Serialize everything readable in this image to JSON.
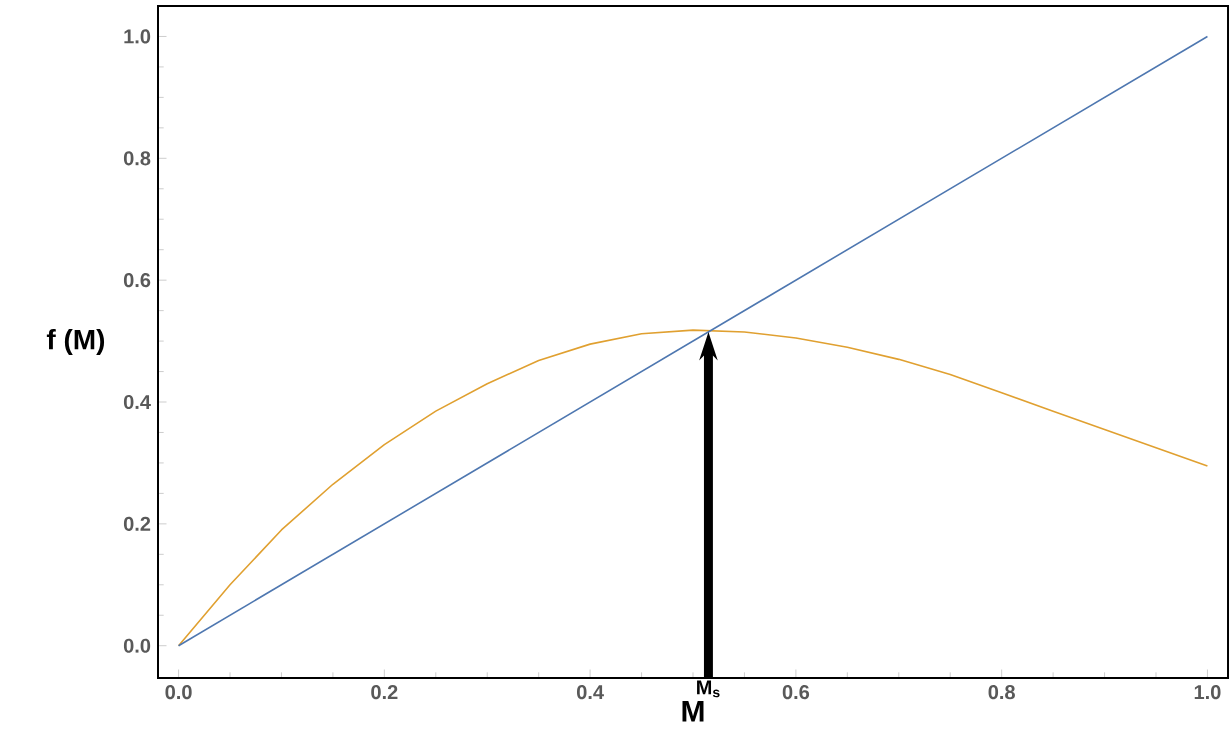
{
  "chart_data": {
    "type": "line",
    "xlabel": "M",
    "ylabel": "f (M)",
    "xlim": [
      -0.02,
      1.02
    ],
    "ylim": [
      -0.053,
      1.05
    ],
    "xticks": [
      {
        "value": 0,
        "label": "0.0"
      },
      0.2,
      0.4,
      0.6,
      0.8,
      {
        "value": 1,
        "label": "1.0"
      }
    ],
    "yticks": [
      {
        "value": 0,
        "label": "0.0"
      },
      0.2,
      0.4,
      0.6,
      0.8,
      {
        "value": 1,
        "label": "1.0"
      }
    ],
    "series": [
      {
        "color": "#e0a030",
        "x": [
          0,
          0.05,
          0.1,
          0.15,
          0.2,
          0.25,
          0.3,
          0.35,
          0.4,
          0.45,
          0.5,
          0.55,
          0.6,
          0.65,
          0.7,
          0.75,
          0.8,
          0.85,
          0.9,
          0.95,
          1.0
        ],
        "values": [
          0,
          0.1,
          0.19,
          0.265,
          0.33,
          0.385,
          0.43,
          0.468,
          0.495,
          0.512,
          0.518,
          0.515,
          0.505,
          0.49,
          0.47,
          0.445,
          0.415,
          0.385,
          0.355,
          0.325,
          0.295
        ]
      },
      {
        "color": "#4e77b0",
        "x": [
          0,
          1
        ],
        "values": [
          0,
          1
        ]
      }
    ],
    "annotations": [
      {
        "text": "M$_{s}$",
        "x": 0.515,
        "y": 0.515
      }
    ],
    "grid": false,
    "marker": "none",
    "line_style": "solid"
  }
}
